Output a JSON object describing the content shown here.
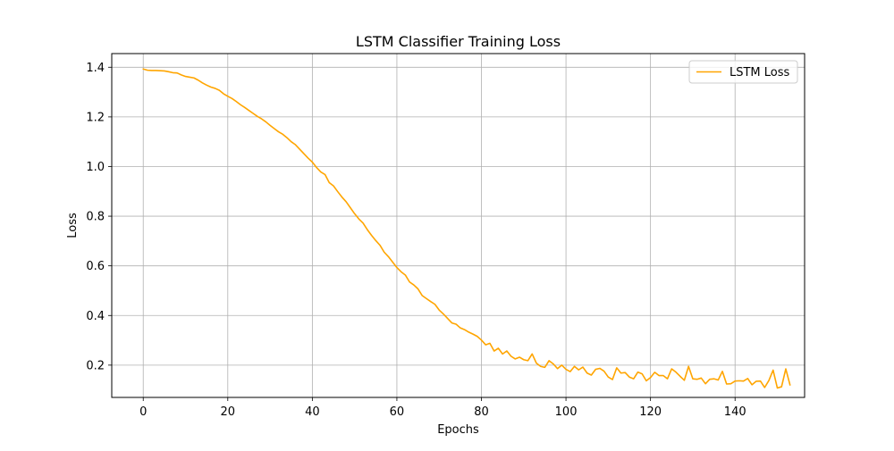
{
  "chart_data": {
    "type": "line",
    "title": "LSTM Classifier Training Loss",
    "xlabel": "Epochs",
    "ylabel": "Loss",
    "xlim": [
      -7.45,
      156.45
    ],
    "ylim": [
      0.07,
      1.455
    ],
    "x_ticks": [
      0,
      20,
      40,
      60,
      80,
      100,
      120,
      140
    ],
    "y_ticks": [
      0.2,
      0.4,
      0.6,
      0.8,
      1.0,
      1.2,
      1.4
    ],
    "x_tick_labels": [
      "0",
      "20",
      "40",
      "60",
      "80",
      "100",
      "120",
      "140"
    ],
    "y_tick_labels": [
      "0.2",
      "0.4",
      "0.6",
      "0.8",
      "1.0",
      "1.2",
      "1.4"
    ],
    "grid": true,
    "legend_position": "top-right",
    "series": [
      {
        "name": "LSTM Loss",
        "color": "#FFA500",
        "values": [
          1.393,
          1.388,
          1.387,
          1.387,
          1.386,
          1.385,
          1.382,
          1.378,
          1.377,
          1.369,
          1.363,
          1.36,
          1.357,
          1.348,
          1.337,
          1.328,
          1.32,
          1.315,
          1.307,
          1.293,
          1.283,
          1.274,
          1.262,
          1.249,
          1.238,
          1.226,
          1.214,
          1.202,
          1.192,
          1.18,
          1.166,
          1.153,
          1.14,
          1.13,
          1.116,
          1.1,
          1.088,
          1.07,
          1.052,
          1.034,
          1.018,
          0.996,
          0.978,
          0.968,
          0.935,
          0.922,
          0.899,
          0.877,
          0.858,
          0.834,
          0.81,
          0.789,
          0.772,
          0.746,
          0.723,
          0.702,
          0.683,
          0.655,
          0.637,
          0.615,
          0.593,
          0.576,
          0.563,
          0.535,
          0.523,
          0.507,
          0.48,
          0.468,
          0.456,
          0.445,
          0.422,
          0.406,
          0.388,
          0.37,
          0.365,
          0.35,
          0.343,
          0.333,
          0.325,
          0.316,
          0.301,
          0.282,
          0.288,
          0.257,
          0.268,
          0.245,
          0.257,
          0.236,
          0.225,
          0.232,
          0.222,
          0.218,
          0.245,
          0.208,
          0.195,
          0.191,
          0.218,
          0.205,
          0.186,
          0.2,
          0.183,
          0.174,
          0.195,
          0.181,
          0.192,
          0.168,
          0.16,
          0.183,
          0.187,
          0.176,
          0.152,
          0.142,
          0.189,
          0.168,
          0.17,
          0.152,
          0.145,
          0.172,
          0.165,
          0.137,
          0.15,
          0.171,
          0.158,
          0.158,
          0.145,
          0.185,
          0.172,
          0.155,
          0.139,
          0.195,
          0.145,
          0.143,
          0.148,
          0.125,
          0.143,
          0.145,
          0.14,
          0.175,
          0.124,
          0.125,
          0.136,
          0.137,
          0.136,
          0.146,
          0.121,
          0.135,
          0.136,
          0.11,
          0.138,
          0.18,
          0.108,
          0.113,
          0.185,
          0.12
        ]
      }
    ]
  }
}
